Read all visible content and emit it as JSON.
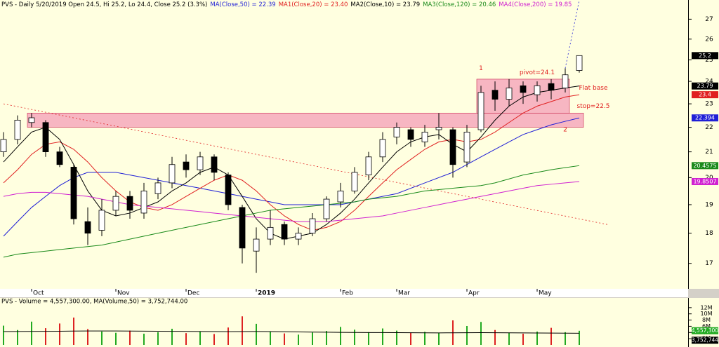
{
  "chart_data": {
    "type": "candlestick",
    "title": "PVS - Daily 5/20/2019 Open 24.5, Hi 25.2, Lo 24.4, Close 25.2 (3.3%)",
    "log_scale": true,
    "ylim": [
      16.2,
      28
    ],
    "yticks": [
      17,
      18,
      19,
      20,
      21,
      22,
      23,
      24,
      25,
      26,
      27
    ],
    "categories": [
      null,
      null,
      "Oct",
      null,
      null,
      null,
      null,
      null,
      "Nov",
      null,
      null,
      null,
      null,
      "Dec",
      null,
      null,
      null,
      null,
      "2019",
      null,
      null,
      null,
      null,
      null,
      "Feb",
      null,
      null,
      null,
      "Mar",
      null,
      null,
      null,
      null,
      "Apr",
      null,
      null,
      null,
      null,
      "May",
      null,
      null,
      null
    ],
    "ohlc": {
      "open": [
        21.0,
        21.5,
        22.2,
        22.2,
        21.0,
        20.4,
        18.4,
        18.1,
        18.8,
        19.3,
        18.7,
        19.4,
        19.8,
        20.6,
        20.3,
        20.8,
        20.1,
        18.9,
        17.4,
        17.8,
        18.3,
        17.8,
        18.0,
        18.5,
        19.1,
        19.5,
        20.1,
        20.8,
        21.6,
        21.9,
        21.4,
        21.9,
        21.9,
        20.6,
        21.9,
        23.6,
        23.2,
        23.8,
        23.4,
        23.9,
        23.7,
        24.5
      ],
      "high": [
        21.8,
        22.5,
        22.6,
        22.3,
        21.2,
        20.5,
        18.9,
        19.2,
        19.5,
        19.5,
        19.8,
        20.0,
        20.8,
        20.9,
        21.0,
        20.9,
        20.2,
        19.0,
        18.2,
        18.8,
        18.4,
        18.2,
        18.7,
        19.3,
        19.8,
        20.4,
        21.0,
        21.8,
        22.2,
        22.0,
        22.1,
        22.6,
        22.0,
        22.1,
        23.8,
        24.0,
        24.1,
        24.0,
        24.0,
        24.1,
        24.6,
        25.2
      ],
      "low": [
        20.8,
        21.3,
        22.0,
        20.8,
        20.4,
        18.3,
        17.6,
        17.9,
        18.6,
        18.5,
        18.5,
        19.2,
        19.6,
        20.0,
        20.1,
        19.9,
        18.8,
        17.0,
        16.7,
        17.6,
        17.6,
        17.6,
        17.9,
        18.4,
        18.9,
        19.4,
        19.9,
        20.6,
        21.3,
        21.2,
        21.2,
        21.5,
        20.0,
        20.4,
        21.8,
        22.7,
        22.9,
        23.0,
        23.1,
        23.2,
        23.5,
        24.4
      ],
      "close": [
        21.5,
        22.3,
        22.4,
        21.0,
        20.5,
        18.5,
        18.0,
        18.8,
        19.3,
        18.8,
        19.5,
        19.8,
        20.5,
        20.3,
        20.8,
        20.2,
        19.0,
        17.5,
        17.8,
        18.2,
        17.8,
        18.0,
        18.5,
        19.2,
        19.5,
        20.2,
        20.8,
        21.5,
        22.0,
        21.5,
        21.8,
        22.0,
        20.5,
        21.8,
        23.5,
        23.2,
        23.7,
        23.5,
        23.8,
        23.6,
        24.3,
        25.2
      ]
    },
    "up_color": "#ffffff",
    "down_color": "#000000",
    "background": "#ffffe0",
    "series": [
      {
        "name": "MA(Close,50) = 22.39",
        "color": "#1f1fd6",
        "value_label": "22.394",
        "values": [
          17.9,
          18.4,
          18.9,
          19.3,
          19.7,
          20.0,
          20.2,
          20.2,
          20.2,
          20.1,
          20.0,
          19.9,
          19.8,
          19.7,
          19.6,
          19.5,
          19.4,
          19.3,
          19.2,
          19.1,
          19.0,
          19.0,
          19.0,
          19.0,
          19.0,
          19.1,
          19.2,
          19.3,
          19.4,
          19.6,
          19.8,
          20.0,
          20.2,
          20.5,
          20.8,
          21.1,
          21.4,
          21.7,
          21.9,
          22.1,
          22.25,
          22.394
        ]
      },
      {
        "name": "MA1(Close,20) = 23.40",
        "color": "#e02020",
        "value_label": "23.4",
        "values": [
          19.8,
          20.3,
          20.9,
          21.3,
          21.4,
          21.1,
          20.6,
          20.0,
          19.5,
          19.1,
          18.9,
          18.8,
          19.0,
          19.3,
          19.6,
          19.9,
          20.1,
          19.9,
          19.5,
          19.0,
          18.6,
          18.3,
          18.1,
          18.2,
          18.4,
          18.8,
          19.3,
          19.8,
          20.3,
          20.7,
          21.1,
          21.4,
          21.5,
          21.4,
          21.5,
          21.8,
          22.2,
          22.6,
          22.9,
          23.1,
          23.3,
          23.4
        ]
      },
      {
        "name": "MA2(Close,10) = 23.79",
        "color": "#000000",
        "value_label": "23.79",
        "values": [
          20.6,
          21.2,
          21.8,
          22.0,
          21.5,
          20.5,
          19.5,
          18.8,
          18.6,
          18.7,
          18.9,
          19.1,
          19.5,
          19.8,
          20.2,
          20.4,
          20.1,
          19.3,
          18.5,
          18.0,
          17.8,
          17.9,
          18.0,
          18.3,
          18.7,
          19.2,
          19.8,
          20.4,
          21.0,
          21.4,
          21.6,
          21.7,
          21.3,
          21.0,
          21.6,
          22.3,
          22.9,
          23.3,
          23.5,
          23.6,
          23.7,
          23.79
        ]
      },
      {
        "name": "MA3(Close,120) = 20.46",
        "color": "#1a8a1a",
        "value_label": "20.4575",
        "values": [
          17.2,
          17.3,
          17.35,
          17.4,
          17.45,
          17.5,
          17.55,
          17.6,
          17.7,
          17.8,
          17.9,
          18.0,
          18.1,
          18.2,
          18.3,
          18.4,
          18.5,
          18.6,
          18.7,
          18.8,
          18.85,
          18.9,
          18.95,
          19.0,
          19.05,
          19.1,
          19.2,
          19.25,
          19.3,
          19.4,
          19.5,
          19.55,
          19.6,
          19.65,
          19.7,
          19.8,
          19.95,
          20.1,
          20.2,
          20.3,
          20.38,
          20.4575
        ]
      },
      {
        "name": "MA4(Close,200) = 19.85",
        "color": "#d020d0",
        "value_label": "19.8507",
        "values": [
          19.3,
          19.4,
          19.45,
          19.45,
          19.4,
          19.35,
          19.3,
          19.2,
          19.1,
          19.0,
          18.95,
          18.9,
          18.85,
          18.8,
          18.75,
          18.7,
          18.65,
          18.6,
          18.55,
          18.5,
          18.45,
          18.4,
          18.4,
          18.4,
          18.45,
          18.5,
          18.55,
          18.6,
          18.7,
          18.8,
          18.9,
          19.0,
          19.1,
          19.2,
          19.3,
          19.4,
          19.5,
          19.6,
          19.7,
          19.75,
          19.8,
          19.8507
        ]
      }
    ],
    "zones": [
      {
        "from": 2,
        "to": 41,
        "ylim": [
          22.0,
          22.6
        ],
        "color": "#f7b6c2"
      },
      {
        "from": 34,
        "to": 40,
        "ylim": [
          22.6,
          24.1
        ],
        "color": "#f7b6c2"
      }
    ],
    "trendlines": [
      {
        "from": [
          0,
          23.0
        ],
        "to": [
          43,
          18.3
        ],
        "color": "#e02020"
      },
      {
        "from": [
          40,
          24.6
        ],
        "to": [
          41,
          28
        ],
        "color": "#1f1fd6"
      }
    ],
    "annotations": [
      {
        "text": "1",
        "at": [
          34,
          24.6
        ],
        "color": "#e02020"
      },
      {
        "text": "pivot=24.1",
        "at": [
          38,
          24.4
        ],
        "color": "#e02020"
      },
      {
        "text": "Flat base",
        "at": [
          42,
          23.7
        ],
        "color": "#e02020"
      },
      {
        "text": "stop=22.5",
        "at": [
          42,
          22.9
        ],
        "color": "#e02020"
      },
      {
        "text": "2",
        "at": [
          40,
          21.9
        ],
        "color": "#e02020"
      }
    ],
    "volume": {
      "title": "PVS - Volume = 4,557,300.00, MA(Volume,50) = 3,752,744.00",
      "ylim": [
        0,
        14000000
      ],
      "yticks": [
        {
          "value": 2000000,
          "label": "2M"
        },
        {
          "value": 4000000,
          "label": "4M"
        },
        {
          "value": 6000000,
          "label": "6M"
        },
        {
          "value": 8000000,
          "label": "8M"
        },
        {
          "value": 10000000,
          "label": "10M"
        },
        {
          "value": 12000000,
          "label": "12M"
        }
      ],
      "up_color": "#22aa22",
      "down_color": "#dd2222",
      "ma_color": "#000000",
      "values": [
        6200000,
        4800000,
        7500000,
        5400000,
        6900000,
        8800000,
        5100000,
        4300000,
        3900000,
        4600000,
        3600000,
        4100000,
        5200000,
        3800000,
        4400000,
        3500000,
        5600000,
        9200000,
        6800000,
        4200000,
        3700000,
        3300000,
        4000000,
        4500000,
        5800000,
        4900000,
        4100000,
        5300000,
        4600000,
        3900000,
        4200000,
        3800000,
        7900000,
        6100000,
        7400000,
        4800000,
        3900000,
        3600000,
        4300000,
        5500000,
        4100000,
        4557300
      ],
      "value_label": "4,557,300",
      "ma_values": [
        4300000,
        4320000,
        4350000,
        4380000,
        4400000,
        4450000,
        4480000,
        4500000,
        4490000,
        4470000,
        4440000,
        4400000,
        4380000,
        4350000,
        4320000,
        4280000,
        4260000,
        4300000,
        4320000,
        4280000,
        4230000,
        4180000,
        4130000,
        4080000,
        4050000,
        4020000,
        3990000,
        3970000,
        3950000,
        3920000,
        3890000,
        3870000,
        3900000,
        3920000,
        3950000,
        3930000,
        3900000,
        3860000,
        3830000,
        3800000,
        3770000,
        3752744
      ],
      "ma_value_label": "3,752,744"
    }
  }
}
